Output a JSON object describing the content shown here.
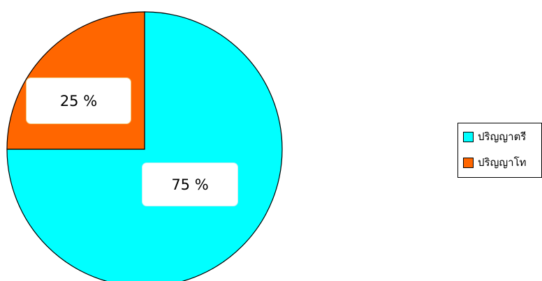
{
  "chart_data": {
    "type": "pie",
    "slices": [
      {
        "name": "ปริญญาตรี",
        "value": 75,
        "label": "75 %",
        "color": "#00FFFF"
      },
      {
        "name": "ปริญญาโท",
        "value": 25,
        "label": "25 %",
        "color": "#FF6600"
      }
    ],
    "start": "12 o'clock",
    "direction": "clockwise",
    "legend": {
      "position": "right",
      "entries": [
        "ปริญญาตรี",
        "ปริญญาโท"
      ]
    },
    "title": ""
  }
}
